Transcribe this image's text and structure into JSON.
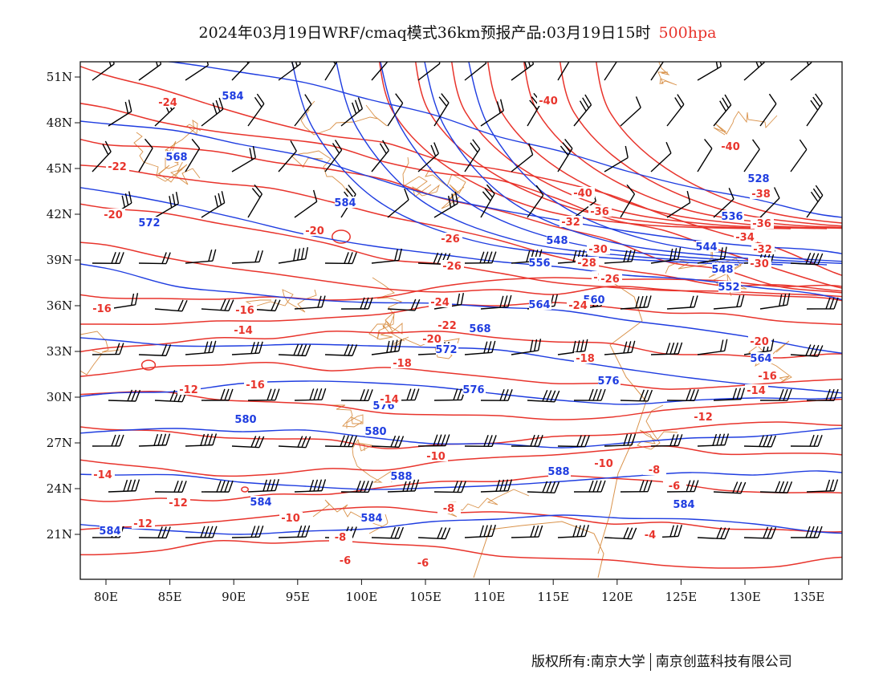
{
  "title": {
    "main": "2024年03月19日WRF/cmaq模式36km预报产品:03月19日15时",
    "level": "500hpa"
  },
  "colors": {
    "temperature": "#e8342c",
    "height": "#1f3de0",
    "border": "#d9924a",
    "wind": "#000000"
  },
  "map_data": {
    "lon_range": [
      78,
      138
    ],
    "lat_range": [
      18,
      52
    ],
    "lon_ticks": [
      "80E",
      "85E",
      "90E",
      "95E",
      "100E",
      "105E",
      "110E",
      "115E",
      "120E",
      "125E",
      "130E",
      "135E"
    ],
    "lat_ticks": [
      "51N",
      "48N",
      "45N",
      "42N",
      "39N",
      "36N",
      "33N",
      "30N",
      "27N",
      "24N",
      "21N"
    ],
    "height_labels": [
      "584",
      "568",
      "584",
      "572",
      "548",
      "556",
      "564",
      "560",
      "536",
      "544",
      "548",
      "552",
      "568",
      "572",
      "576",
      "576",
      "580",
      "580",
      "584",
      "584",
      "588",
      "588",
      "584",
      "584",
      "528",
      "564",
      "576"
    ],
    "temp_labels": [
      "-24",
      "-22",
      "-20",
      "-20",
      "-26",
      "-28",
      "-40",
      "-40",
      "-36",
      "-32",
      "-30",
      "-28",
      "-26",
      "-24",
      "-22",
      "-20",
      "-18",
      "-16",
      "-14",
      "-12",
      "-16",
      "-14",
      "-12",
      "-12",
      "-10",
      "-8",
      "-6",
      "-4",
      "-6",
      "-8",
      "-10",
      "-16",
      "-14",
      "-18",
      "-26",
      "-24",
      "-38",
      "-40",
      "-36",
      "-34",
      "-32",
      "-30",
      "-20",
      "-16",
      "-14",
      "-12",
      "-10",
      "-8",
      "-6"
    ]
  },
  "credit": {
    "left": "版权所有:南京大学",
    "right": "南京创蓝科技有限公司"
  }
}
